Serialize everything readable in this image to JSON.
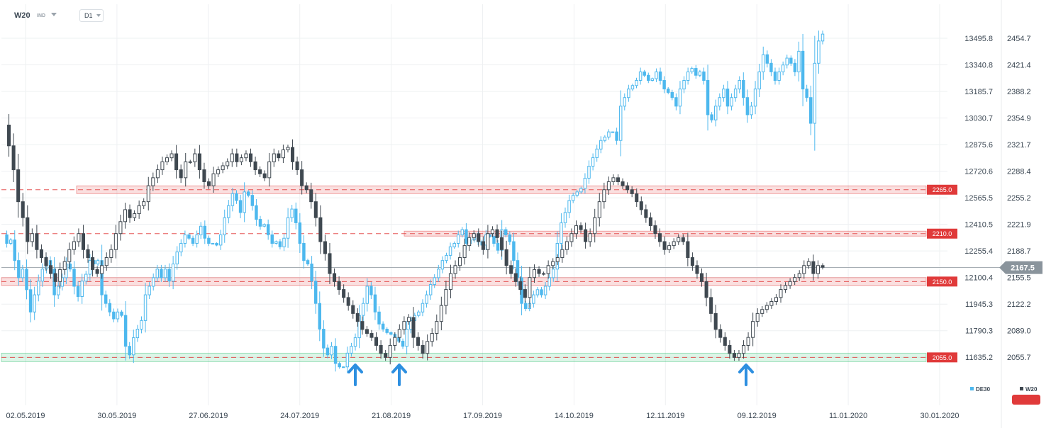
{
  "toolbar": {
    "symbol": "W20",
    "instrument_type": "IND",
    "timeframe": "D1"
  },
  "colors": {
    "de30": "#4db8ee",
    "w20": "#3f4850",
    "resistance": "#e03a3a",
    "support_green": "#2fbf71",
    "arrow": "#2d8fe0",
    "current_price_bg": "#8a949c"
  },
  "chart_data": {
    "type": "candlestick",
    "title": "",
    "xlabel": "",
    "ylabel": "",
    "x_tick_labels": [
      "02.05.2019",
      "30.05.2019",
      "27.06.2019",
      "24.07.2019",
      "21.08.2019",
      "17.09.2019",
      "14.10.2019",
      "12.11.2019",
      "09.12.2019",
      "11.01.2020",
      "30.01.2020"
    ],
    "left_axis": {
      "instrument": "DE30",
      "ticks": [
        13495.8,
        13340.8,
        13185.7,
        13030.7,
        12875.6,
        12720.6,
        12565.5,
        12410.5,
        12255.4,
        12100.4,
        11945.3,
        11790.3,
        11635.2
      ]
    },
    "right_axis": {
      "instrument": "W20",
      "ticks": [
        2454.7,
        2421.4,
        2388.2,
        2354.9,
        2321.7,
        2288.4,
        2255.2,
        2221.9,
        2188.7,
        2155.5,
        2122.2,
        2089.0,
        2055.7
      ]
    },
    "current_price": "2167.5",
    "levels": [
      {
        "label": "2265.0",
        "value": 2265.0,
        "zone": "red"
      },
      {
        "label": "2210.0",
        "value": 2210.0,
        "zone": "red"
      },
      {
        "label": "2150.0",
        "value": 2150.0,
        "zone": "red"
      },
      {
        "label": "2055.0",
        "value": 2055.0,
        "zone": "green"
      }
    ],
    "arrows": [
      "up",
      "up",
      "up"
    ],
    "grid": true,
    "legend": {
      "position": "bottom-right",
      "entries": [
        "DE30",
        "W20"
      ]
    },
    "series": [
      {
        "name": "DE30",
        "color": "#4db8ee",
        "closes": [
          12350,
          12300,
          12320,
          12200,
          12100,
          12150,
          12030,
          11900,
          12000,
          12080,
          12150,
          12200,
          12150,
          12000,
          12050,
          12100,
          12180,
          12150,
          12050,
          11990,
          12080,
          12120,
          12200,
          12180,
          12200,
          12000,
          11950,
          11900,
          11860,
          11900,
          11880,
          11700,
          11650,
          11750,
          11800,
          11850,
          12000,
          12050,
          12100,
          12150,
          12100,
          12150,
          12080,
          12180,
          12250,
          12300,
          12350,
          12330,
          12300,
          12350,
          12400,
          12330,
          12300,
          12300,
          12290,
          12350,
          12450,
          12520,
          12590,
          12550,
          12480,
          12600,
          12580,
          12520,
          12440,
          12400,
          12410,
          12350,
          12300,
          12310,
          12280,
          12330,
          12450,
          12500,
          12420,
          12300,
          12200,
          12180,
          12080,
          11950,
          11800,
          11690,
          11650,
          11700,
          11600,
          11580,
          11580,
          11660,
          11700,
          11750,
          11880,
          11950,
          12050,
          12000,
          11900,
          11830,
          11800,
          11780,
          11770,
          11750,
          11730,
          11700,
          11800,
          11850,
          11880,
          11900,
          11950,
          12000,
          12060,
          12100,
          12150,
          12200,
          12230,
          12280,
          12300,
          12350,
          12380,
          12300,
          12320,
          12350,
          12310,
          12290,
          12350,
          12340,
          12300,
          12260,
          12380,
          12350,
          12310,
          12200,
          12100,
          11950,
          11920,
          11950,
          12000,
          12030,
          12000,
          12050,
          12100,
          12150,
          12300,
          12420,
          12480,
          12550,
          12580,
          12600,
          12620,
          12680,
          12750,
          12800,
          12850,
          12900,
          12920,
          12950,
          12950,
          12900,
          13100,
          13150,
          13200,
          13220,
          13250,
          13300,
          13280,
          13250,
          13260,
          13300,
          13250,
          13200,
          13180,
          13150,
          13100,
          13200,
          13250,
          13300,
          13320,
          13280,
          13300,
          13250,
          13050,
          13020,
          13100,
          13150,
          13200,
          13100,
          13150,
          13200,
          13250,
          13150,
          13050,
          13100,
          13200,
          13300,
          13400,
          13350,
          13300,
          13250,
          13300,
          13340,
          13380,
          13350,
          13300,
          13420,
          13200,
          13150,
          13000,
          13350,
          13480,
          13520
        ]
      },
      {
        "name": "W20",
        "closes": [
          2346,
          2320,
          2290,
          2250,
          2230,
          2200,
          2210,
          2190,
          2180,
          2170,
          2160,
          2150,
          2165,
          2175,
          2190,
          2200,
          2210,
          2190,
          2180,
          2165,
          2160,
          2170,
          2180,
          2190,
          2210,
          2225,
          2240,
          2230,
          2235,
          2245,
          2250,
          2270,
          2280,
          2290,
          2300,
          2305,
          2310,
          2290,
          2280,
          2300,
          2300,
          2310,
          2290,
          2275,
          2270,
          2285,
          2290,
          2295,
          2300,
          2310,
          2300,
          2305,
          2310,
          2300,
          2290,
          2285,
          2280,
          2300,
          2310,
          2305,
          2315,
          2318,
          2300,
          2290,
          2270,
          2265,
          2250,
          2230,
          2200,
          2185,
          2160,
          2150,
          2140,
          2130,
          2120,
          2110,
          2100,
          2090,
          2085,
          2080,
          2070,
          2060,
          2055,
          2070,
          2080,
          2090,
          2100,
          2105,
          2080,
          2070,
          2060,
          2075,
          2085,
          2100,
          2120,
          2140,
          2160,
          2170,
          2180,
          2195,
          2205,
          2210,
          2200,
          2190,
          2210,
          2215,
          2205,
          2190,
          2170,
          2160,
          2150,
          2140,
          2130,
          2155,
          2165,
          2160,
          2160,
          2170,
          2175,
          2180,
          2190,
          2200,
          2210,
          2220,
          2215,
          2200,
          2210,
          2230,
          2250,
          2265,
          2275,
          2280,
          2275,
          2270,
          2265,
          2260,
          2250,
          2240,
          2230,
          2220,
          2210,
          2200,
          2190,
          2195,
          2200,
          2205,
          2200,
          2180,
          2170,
          2160,
          2150,
          2130,
          2110,
          2090,
          2080,
          2070,
          2060,
          2055,
          2060,
          2070,
          2080,
          2100,
          2110,
          2115,
          2120,
          2125,
          2130,
          2140,
          2145,
          2150,
          2155,
          2160,
          2170,
          2175,
          2160,
          2170,
          2168
        ]
      }
    ]
  }
}
